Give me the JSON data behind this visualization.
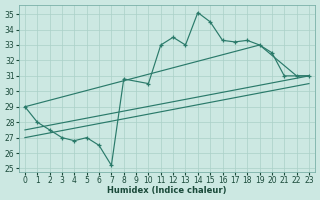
{
  "bg_color": "#cce8e2",
  "line_color": "#2a7a6a",
  "grid_color": "#aad0c8",
  "xlim": [
    -0.5,
    23.5
  ],
  "ylim": [
    24.8,
    35.6
  ],
  "xticks": [
    0,
    1,
    2,
    3,
    4,
    5,
    6,
    7,
    8,
    9,
    10,
    11,
    12,
    13,
    14,
    15,
    16,
    17,
    18,
    19,
    20,
    21,
    22,
    23
  ],
  "yticks": [
    25,
    26,
    27,
    28,
    29,
    30,
    31,
    32,
    33,
    34,
    35
  ],
  "xlabel": "Humidex (Indice chaleur)",
  "jagged_x": [
    0,
    1,
    2,
    3,
    4,
    5,
    6,
    7,
    8,
    10,
    11,
    12,
    13,
    14,
    15,
    16,
    17,
    18,
    19,
    20,
    21,
    22,
    23
  ],
  "jagged_y": [
    29,
    28,
    27.5,
    27,
    26.8,
    27,
    26.5,
    25.2,
    30.8,
    30.5,
    33.0,
    33.5,
    33.0,
    35.1,
    34.5,
    33.3,
    33.2,
    33.3,
    33.0,
    32.5,
    31.0,
    31.0,
    31.0
  ],
  "trend1_x": [
    0,
    19,
    22,
    23
  ],
  "trend1_y": [
    29.0,
    33.0,
    31.0,
    31.0
  ],
  "trend2_x": [
    0,
    23
  ],
  "trend2_y": [
    27.5,
    31.0
  ],
  "trend3_x": [
    0,
    23
  ],
  "trend3_y": [
    27.0,
    30.5
  ]
}
